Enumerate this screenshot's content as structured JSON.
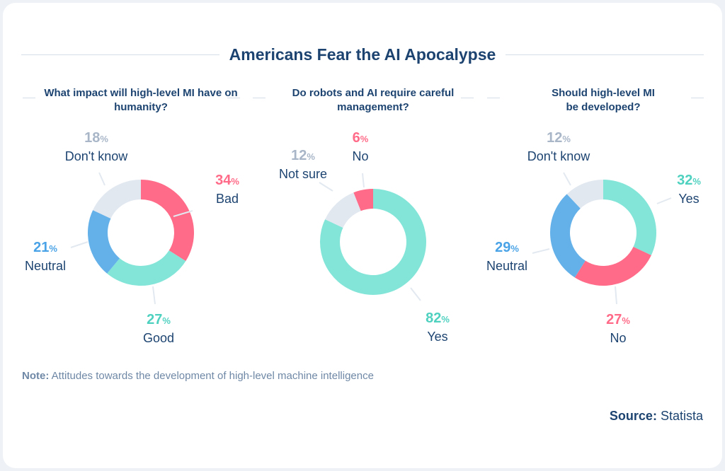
{
  "title": "Americans Fear the AI Apocalypse",
  "note_label": "Note:",
  "note_text": "Attitudes towards the development of high-level machine intelligence",
  "source_label": "Source:",
  "source_text": "Statista",
  "colors": {
    "pink": "#ff6b88",
    "teal": "#82e5d8",
    "blue": "#64b1ea",
    "gray": "#e2e8f0",
    "teal_text": "#4fd1c0",
    "blue_text": "#4aa3e6",
    "gray_text": "#a8b6c8"
  },
  "chart_data": [
    {
      "type": "pie",
      "title": "What impact will high-level MI have on humanity?",
      "categories": [
        "Bad",
        "Good",
        "Neutral",
        "Don't know"
      ],
      "values": [
        34,
        27,
        21,
        18
      ],
      "labels": [
        "34",
        "27",
        "21",
        "18"
      ],
      "unit": "%"
    },
    {
      "type": "pie",
      "title": "Do robots and AI require careful management?",
      "categories": [
        "Yes",
        "Not sure",
        "No"
      ],
      "values": [
        82,
        12,
        6
      ],
      "labels": [
        "82",
        "12",
        "6"
      ],
      "unit": "%"
    },
    {
      "type": "pie",
      "title": "Should high-level MI be developed?",
      "categories": [
        "Yes",
        "No",
        "Neutral",
        "Don't know"
      ],
      "values": [
        32,
        27,
        29,
        12
      ],
      "labels": [
        "32",
        "27",
        "29",
        "12"
      ],
      "unit": "%"
    }
  ]
}
